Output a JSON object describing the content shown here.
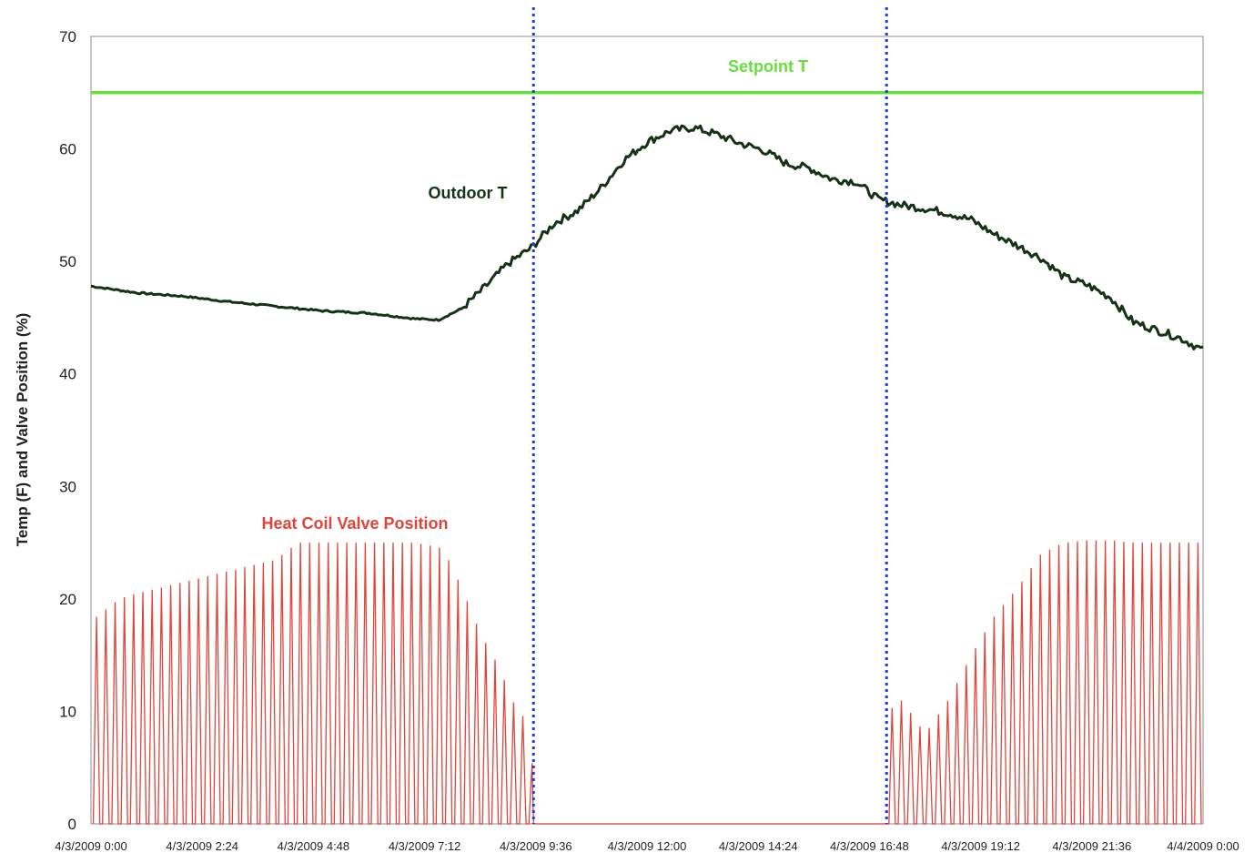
{
  "chart_data": {
    "type": "line",
    "title": "",
    "xlabel": "",
    "ylabel": "Temp (F) and Valve Position (%)",
    "ylim": [
      0,
      70
    ],
    "y_ticks": [
      "0",
      "10",
      "20",
      "30",
      "40",
      "50",
      "60",
      "70"
    ],
    "x_ticks": [
      "4/3/2009 0:00",
      "4/3/2009 2:24",
      "4/3/2009 4:48",
      "4/3/2009 7:12",
      "4/3/2009 9:36",
      "4/3/2009 12:00",
      "4/3/2009 14:24",
      "4/3/2009 16:48",
      "4/3/2009 19:12",
      "4/3/2009 21:36",
      "4/4/2009 0:00"
    ],
    "xlim_hours": [
      0,
      24
    ],
    "grid": false,
    "annotations": {
      "setpoint": "Setpoint T",
      "outdoor": "Outdoor T",
      "valve": "Heat Coil Valve Position"
    },
    "colors": {
      "setpoint": "#66e03a",
      "outdoor": "#143214",
      "valve": "#e0453a",
      "vlines": "#1f3fdc"
    },
    "vertical_lines_hours": [
      9.55,
      17.17
    ],
    "series": [
      {
        "key": "setpoint",
        "x_hours": [
          0,
          24
        ],
        "values": [
          65,
          65
        ]
      },
      {
        "key": "outdoor",
        "x_hours": [
          0,
          1,
          2,
          3,
          4,
          5,
          6,
          7,
          7.5,
          8,
          8.5,
          9,
          9.5,
          10,
          10.5,
          11,
          11.5,
          12,
          12.5,
          13,
          13.5,
          14,
          14.5,
          15,
          15.5,
          16,
          16.5,
          17,
          17.5,
          18,
          18.5,
          19,
          19.5,
          20,
          20.5,
          21,
          21.5,
          22,
          22.5,
          23,
          23.5,
          24
        ],
        "values": [
          47.8,
          47.2,
          46.9,
          46.4,
          46.0,
          45.6,
          45.4,
          44.9,
          44.8,
          45.8,
          47.7,
          49.8,
          51.2,
          53.4,
          54.5,
          56.5,
          59.0,
          60.6,
          61.6,
          61.9,
          61.3,
          60.5,
          59.9,
          58.7,
          58.3,
          57.3,
          57.1,
          55.5,
          55.0,
          54.7,
          54.3,
          53.7,
          52.4,
          51.4,
          50.3,
          48.6,
          47.9,
          46.8,
          44.6,
          43.9,
          43.2,
          42.1
        ]
      },
      {
        "key": "valve",
        "cycle_hours": 0.2,
        "envelope_x_hours": [
          0,
          0.3,
          0.6,
          1.0,
          1.5,
          2.0,
          2.5,
          3.0,
          3.5,
          4.0,
          4.3,
          4.5,
          5.0,
          6.0,
          7.0,
          7.6,
          8.0,
          8.4,
          8.8,
          9.2,
          9.5,
          9.55,
          17.2,
          17.5,
          18.0,
          18.5,
          19.0,
          19.5,
          20.0,
          20.5,
          21.0,
          21.5,
          22.0,
          22.5,
          23.0,
          24.0
        ],
        "envelope_values": [
          18,
          19,
          20,
          20.5,
          21,
          21.5,
          22,
          22.5,
          23,
          23.5,
          24.5,
          25,
          25,
          25,
          25,
          24.5,
          21,
          17,
          14,
          10,
          9,
          0,
          10,
          11,
          8,
          11,
          15,
          18.5,
          21,
          24,
          25,
          25.2,
          25.2,
          25,
          25,
          25
        ]
      }
    ]
  }
}
